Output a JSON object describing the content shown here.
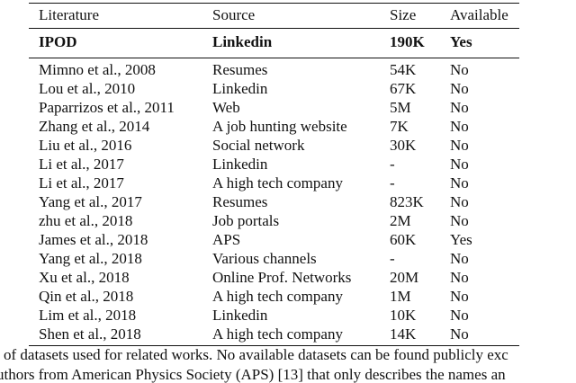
{
  "table": {
    "headers": {
      "literature": "Literature",
      "source": "Source",
      "size": "Size",
      "available": "Available"
    },
    "highlight_row": {
      "literature": "IPOD",
      "source": "Linkedin",
      "size": "190K",
      "available": "Yes"
    },
    "rows": [
      {
        "literature": "Mimno et al., 2008",
        "source": "Resumes",
        "size": "54K",
        "available": "No"
      },
      {
        "literature": "Lou et al., 2010",
        "source": "Linkedin",
        "size": "67K",
        "available": "No"
      },
      {
        "literature": "Paparrizos et al., 2011",
        "source": "Web",
        "size": "5M",
        "available": "No"
      },
      {
        "literature": "Zhang et al., 2014",
        "source": "A job hunting website",
        "size": "7K",
        "available": "No"
      },
      {
        "literature": "Liu et al., 2016",
        "source": "Social network",
        "size": "30K",
        "available": "No"
      },
      {
        "literature": "Li et al., 2017",
        "source": "Linkedin",
        "size": "-",
        "available": "No"
      },
      {
        "literature": "Li et al., 2017",
        "source": "A high tech company",
        "size": "-",
        "available": "No"
      },
      {
        "literature": "Yang et al., 2017",
        "source": "Resumes",
        "size": "823K",
        "available": "No"
      },
      {
        "literature": "zhu et al., 2018",
        "source": "Job portals",
        "size": "2M",
        "available": "No"
      },
      {
        "literature": "James et al., 2018",
        "source": "APS",
        "size": "60K",
        "available": "Yes"
      },
      {
        "literature": "Yang et al., 2018",
        "source": "Various channels",
        "size": "-",
        "available": "No"
      },
      {
        "literature": "Xu et al., 2018",
        "source": "Online Prof. Networks",
        "size": "20M",
        "available": "No"
      },
      {
        "literature": "Qin et al., 2018",
        "source": "A high tech company",
        "size": "1M",
        "available": "No"
      },
      {
        "literature": "Lim et al., 2018",
        "source": "Linkedin",
        "size": "10K",
        "available": "No"
      },
      {
        "literature": "Shen et al., 2018",
        "source": "A high tech company",
        "size": "14K",
        "available": "No"
      }
    ]
  },
  "caption": {
    "line1": "of datasets used for related works. No available datasets can be found publicly exc",
    "line2": "uthors from American Physics Society (APS) [13] that only describes the names an"
  }
}
